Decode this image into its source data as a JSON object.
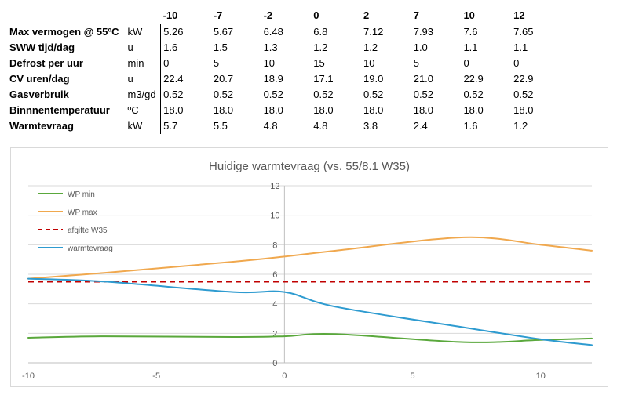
{
  "table": {
    "columns": [
      "-10",
      "-7",
      "-2",
      "0",
      "2",
      "7",
      "10",
      "12"
    ],
    "rows": [
      {
        "label": "Max vermogen @ 55ºC",
        "unit": "kW",
        "values": [
          "5.26",
          "5.67",
          "6.48",
          "6.8",
          "7.12",
          "7.93",
          "7.6",
          "7.65"
        ]
      },
      {
        "label": "SWW tijd/dag",
        "unit": "u",
        "values": [
          "1.6",
          "1.5",
          "1.3",
          "1.2",
          "1.2",
          "1.0",
          "1.1",
          "1.1"
        ]
      },
      {
        "label": "Defrost per uur",
        "unit": "min",
        "values": [
          "0",
          "5",
          "10",
          "15",
          "10",
          "5",
          "0",
          "0"
        ]
      },
      {
        "label": "CV uren/dag",
        "unit": "u",
        "values": [
          "22.4",
          "20.7",
          "18.9",
          "17.1",
          "19.0",
          "21.0",
          "22.9",
          "22.9"
        ]
      },
      {
        "label": "Gasverbruik",
        "unit": "m3/gd",
        "values": [
          "0.52",
          "0.52",
          "0.52",
          "0.52",
          "0.52",
          "0.52",
          "0.52",
          "0.52"
        ]
      },
      {
        "label": "Binnnentemperatuur",
        "unit": "ºC",
        "values": [
          "18.0",
          "18.0",
          "18.0",
          "18.0",
          "18.0",
          "18.0",
          "18.0",
          "18.0"
        ]
      },
      {
        "label": "Warmtevraag",
        "unit": "kW",
        "values": [
          "5.7",
          "5.5",
          "4.8",
          "4.8",
          "3.8",
          "2.4",
          "1.6",
          "1.2"
        ]
      }
    ]
  },
  "chart_data": {
    "type": "line",
    "title": "Huidige warmtevraag (vs. 55/8.1 W35)",
    "xlabel": "",
    "ylabel": "",
    "xlim": [
      -10,
      12
    ],
    "ylim": [
      0,
      12
    ],
    "xticks": [
      -10,
      -5,
      0,
      5,
      10
    ],
    "yticks": [
      0,
      2,
      4,
      6,
      8,
      10,
      12
    ],
    "grid": true,
    "legend_position": "top-left",
    "series": [
      {
        "name": "WP min",
        "color": "#5aa83c",
        "dashed": false,
        "smooth": true,
        "x": [
          -10,
          -7,
          -2,
          0,
          2,
          7,
          10,
          12
        ],
        "y": [
          1.7,
          1.8,
          1.75,
          1.8,
          1.95,
          1.4,
          1.55,
          1.65
        ]
      },
      {
        "name": "WP max",
        "color": "#f0a84e",
        "dashed": false,
        "smooth": true,
        "x": [
          -10,
          -7,
          -2,
          0,
          2,
          7,
          10,
          12
        ],
        "y": [
          5.7,
          6.1,
          6.85,
          7.2,
          7.6,
          8.5,
          8.0,
          7.6
        ]
      },
      {
        "name": "afgifte W35",
        "color": "#c00000",
        "dashed": true,
        "smooth": false,
        "x": [
          -10,
          12
        ],
        "y": [
          5.5,
          5.5
        ]
      },
      {
        "name": "warmtevraag",
        "color": "#2e9bd0",
        "dashed": false,
        "smooth": true,
        "x": [
          -10,
          -7,
          -2,
          0,
          2,
          7,
          10,
          12
        ],
        "y": [
          5.7,
          5.5,
          4.8,
          4.8,
          3.8,
          2.4,
          1.6,
          1.2
        ]
      }
    ]
  }
}
